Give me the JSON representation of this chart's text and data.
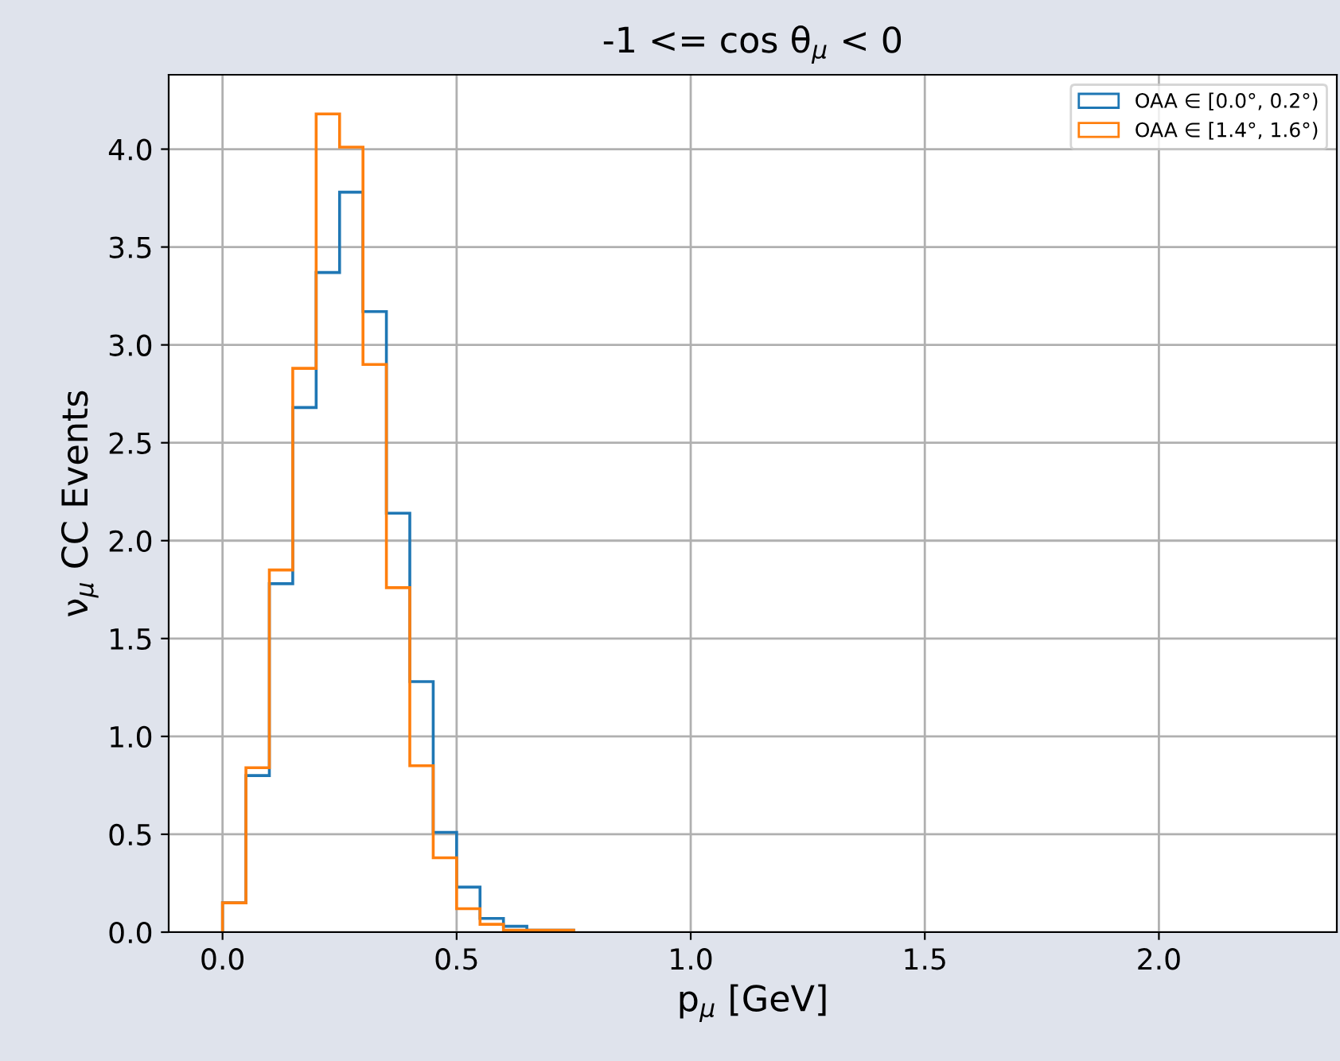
{
  "chart_data": {
    "type": "histogram",
    "title": "-1 <= cos θ$_{μ}$ < 0",
    "xlabel": "p$_{μ}$ [GeV]",
    "ylabel": "ν$_{μ}$ CC Events",
    "bins": [
      0.0,
      0.05,
      0.1,
      0.15,
      0.2,
      0.25,
      0.3,
      0.35,
      0.4,
      0.45,
      0.5,
      0.55,
      0.6,
      0.65,
      0.7,
      0.75
    ],
    "series": [
      {
        "name": "OAA ∈ [0.0°, 0.2°)",
        "color": "#1f77b4",
        "values": [
          0.15,
          0.8,
          1.78,
          2.68,
          3.37,
          3.78,
          3.17,
          2.14,
          1.28,
          0.51,
          0.23,
          0.07,
          0.03,
          0.01,
          0.01
        ]
      },
      {
        "name": "OAA ∈ [1.4°, 1.6°)",
        "color": "#ff7f0e",
        "values": [
          0.15,
          0.84,
          1.85,
          2.88,
          4.18,
          4.01,
          2.9,
          1.76,
          0.85,
          0.38,
          0.12,
          0.04,
          0.01,
          0.01,
          0.01
        ]
      }
    ],
    "xlim": [
      -0.115,
      2.38
    ],
    "ylim": [
      0,
      4.38
    ],
    "xticks": [
      {
        "value": 0,
        "label": "0.0"
      },
      0.5,
      {
        "value": 1,
        "label": "1.0"
      },
      1.5,
      {
        "value": 2,
        "label": "2.0"
      }
    ],
    "yticks": [
      {
        "value": 0,
        "label": "0.0"
      },
      0.5,
      {
        "value": 1,
        "label": "1.0"
      },
      1.5,
      {
        "value": 2,
        "label": "2.0"
      },
      2.5,
      {
        "value": 3,
        "label": "3.0"
      },
      3.5,
      {
        "value": 4,
        "label": "4.0"
      }
    ],
    "grid": true,
    "legend": "top right"
  }
}
